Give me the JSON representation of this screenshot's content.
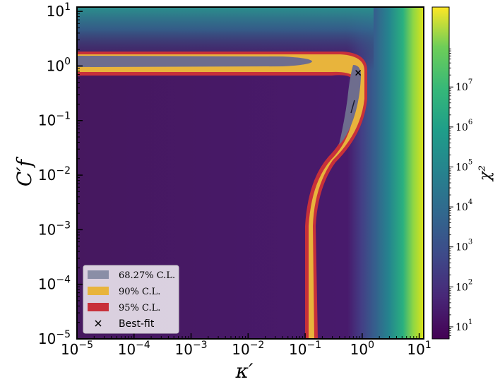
{
  "chart_data": {
    "type": "heatmap",
    "title": "",
    "xlabel": "κ′",
    "ylabel": "C′f",
    "xscale": "log",
    "yscale": "log",
    "xlim": [
      1e-05,
      12
    ],
    "ylim": [
      1e-05,
      12
    ],
    "x_ticks": [
      {
        "base": "10",
        "exp": "−5"
      },
      {
        "base": "10",
        "exp": "−4"
      },
      {
        "base": "10",
        "exp": "−3"
      },
      {
        "base": "10",
        "exp": "−2"
      },
      {
        "base": "10",
        "exp": "−1"
      },
      {
        "base": "10",
        "exp": "0"
      },
      {
        "base": "10",
        "exp": "1"
      }
    ],
    "y_ticks": [
      {
        "base": "10",
        "exp": "−5"
      },
      {
        "base": "10",
        "exp": "−4"
      },
      {
        "base": "10",
        "exp": "−3"
      },
      {
        "base": "10",
        "exp": "−2"
      },
      {
        "base": "10",
        "exp": "−1"
      },
      {
        "base": "10",
        "exp": "0"
      },
      {
        "base": "10",
        "exp": "1"
      }
    ],
    "x_tick_values": [
      1e-05,
      0.0001,
      0.001,
      0.01,
      0.1,
      1,
      10
    ],
    "y_tick_values": [
      1e-05,
      0.0001,
      0.001,
      0.01,
      0.1,
      1,
      10
    ],
    "colorbar": {
      "label": "χ²",
      "scale": "log",
      "colormap": "viridis",
      "range": [
        5,
        1000000000.0
      ],
      "ticks": [
        {
          "base": "10",
          "exp": "1"
        },
        {
          "base": "10",
          "exp": "2"
        },
        {
          "base": "10",
          "exp": "3"
        },
        {
          "base": "10",
          "exp": "4"
        },
        {
          "base": "10",
          "exp": "5"
        },
        {
          "base": "10",
          "exp": "6"
        },
        {
          "base": "10",
          "exp": "7"
        }
      ],
      "tick_values": [
        10,
        100,
        1000,
        10000,
        100000,
        1000000,
        10000000
      ]
    },
    "legend": {
      "placement": "lower-left",
      "entries": [
        {
          "label": "68.27% C.L.",
          "color": "#8a8ea6",
          "kind": "patch"
        },
        {
          "label": "90% C.L.",
          "color": "#e8b43c",
          "kind": "patch"
        },
        {
          "label": "95% C.L.",
          "color": "#c8303a",
          "kind": "patch"
        },
        {
          "label": "Best-fit",
          "color": "#000000",
          "kind": "marker"
        }
      ]
    },
    "best_fit": {
      "x": 0.85,
      "y": 0.75
    },
    "confidence_regions": {
      "horizontal_band_y": [
        0.7,
        1.6
      ],
      "vertical_band_x": [
        0.09,
        0.15
      ],
      "closed_contour_x": [
        0.4,
        1.1
      ],
      "closed_contour_y": [
        0.03,
        1.5
      ]
    }
  }
}
